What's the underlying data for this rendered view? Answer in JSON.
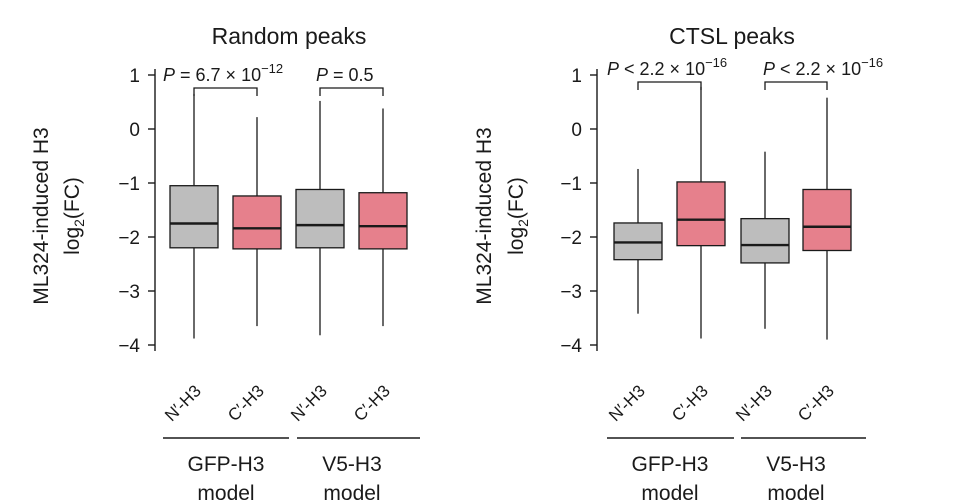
{
  "chart_data": [
    {
      "type": "box",
      "title": "Random peaks",
      "ylabel_line1": "ML324-induced H3",
      "ylabel_line2_pre": "log",
      "ylabel_line2_sub": "2",
      "ylabel_line2_post": "(FC)",
      "ylim": [
        -4.2,
        1.2
      ],
      "yticks": [
        1,
        0,
        -1,
        -2,
        -3,
        -4
      ],
      "ytick_labels": [
        "1",
        "0",
        "−1",
        "−2",
        "−3",
        "−4"
      ],
      "categories": [
        "N′-H3",
        "C′-H3",
        "N′-H3",
        "C′-H3"
      ],
      "boxes": [
        {
          "name": "N′-H3",
          "group": "GFP-H3",
          "min": -3.88,
          "q1": -2.2,
          "median": -1.75,
          "q3": -1.05,
          "max": 0.65,
          "color": "#bdbdbd"
        },
        {
          "name": "C′-H3",
          "group": "GFP-H3",
          "min": -3.65,
          "q1": -2.22,
          "median": -1.84,
          "q3": -1.24,
          "max": 0.22,
          "color": "#e6808c"
        },
        {
          "name": "N′-H3",
          "group": "V5-H3",
          "min": -3.82,
          "q1": -2.2,
          "median": -1.78,
          "q3": -1.12,
          "max": 0.52,
          "color": "#bdbdbd"
        },
        {
          "name": "C′-H3",
          "group": "V5-H3",
          "min": -3.65,
          "q1": -2.22,
          "median": -1.8,
          "q3": -1.18,
          "max": 0.38,
          "color": "#e6808c"
        }
      ],
      "groups": [
        {
          "line1": "GFP-H3",
          "line2": "model"
        },
        {
          "line1": "V5-H3",
          "line2": "model"
        }
      ],
      "comparisons": [
        {
          "p_label": "P",
          "text": " = 6.7 × 10",
          "sup": "−12"
        },
        {
          "p_label": "P",
          "text": " = 0.5",
          "sup": ""
        }
      ]
    },
    {
      "type": "box",
      "title": "CTSL peaks",
      "ylabel_line1": "ML324-induced H3",
      "ylabel_line2_pre": "log",
      "ylabel_line2_sub": "2",
      "ylabel_line2_post": "(FC)",
      "ylim": [
        -4.2,
        1.2
      ],
      "yticks": [
        1,
        0,
        -1,
        -2,
        -3,
        -4
      ],
      "ytick_labels": [
        "1",
        "0",
        "−1",
        "−2",
        "−3",
        "−4"
      ],
      "categories": [
        "N′-H3",
        "C′-H3",
        "N′-H3",
        "C′-H3"
      ],
      "boxes": [
        {
          "name": "N′-H3",
          "group": "GFP-H3",
          "min": -3.42,
          "q1": -2.42,
          "median": -2.1,
          "q3": -1.74,
          "max": -0.74,
          "color": "#bdbdbd"
        },
        {
          "name": "C′-H3",
          "group": "GFP-H3",
          "min": -3.88,
          "q1": -2.16,
          "median": -1.68,
          "q3": -0.98,
          "max": 0.78,
          "color": "#e6808c"
        },
        {
          "name": "N′-H3",
          "group": "V5-H3",
          "min": -3.7,
          "q1": -2.48,
          "median": -2.15,
          "q3": -1.66,
          "max": -0.42,
          "color": "#bdbdbd"
        },
        {
          "name": "C′-H3",
          "group": "V5-H3",
          "min": -3.9,
          "q1": -2.25,
          "median": -1.81,
          "q3": -1.12,
          "max": 0.58,
          "color": "#e6808c"
        }
      ],
      "groups": [
        {
          "line1": "GFP-H3",
          "line2": "model"
        },
        {
          "line1": "V5-H3",
          "line2": "model"
        }
      ],
      "comparisons": [
        {
          "p_label": "P",
          "text": " < 2.2 × 10",
          "sup": "−16"
        },
        {
          "p_label": "P",
          "text": " < 2.2 × 10",
          "sup": "−16"
        }
      ]
    }
  ]
}
